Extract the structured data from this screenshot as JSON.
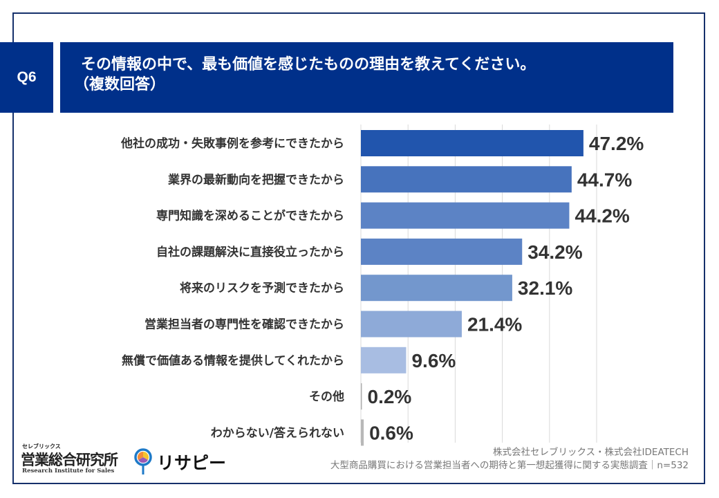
{
  "header": {
    "question_no": "Q6",
    "title_line1": "その情報の中で、最も価値を感じたものの理由を教えてください。",
    "title_line2": "（複数回答）"
  },
  "chart_data": {
    "type": "bar",
    "orientation": "horizontal",
    "title": "その情報の中で、最も価値を感じたものの理由を教えてください。（複数回答）",
    "xlabel": "",
    "ylabel": "",
    "xlim": [
      0,
      50
    ],
    "grid": true,
    "grid_step": 10,
    "value_suffix": "%",
    "categories": [
      "他社の成功・失敗事例を参考にできたから",
      "業界の最新動向を把握できたから",
      "専門知識を深めることができたから",
      "自社の課題解決に直接役立ったから",
      "将来のリスクを予測できたから",
      "営業担当者の専門性を確認できたから",
      "無償で価値ある情報を提供してくれたから",
      "その他",
      "わからない/答えられない"
    ],
    "values": [
      47.2,
      44.7,
      44.2,
      34.2,
      32.1,
      21.4,
      9.6,
      0.2,
      0.6
    ],
    "labels": [
      "47.2%",
      "44.7%",
      "44.2%",
      "34.2%",
      "32.1%",
      "21.4%",
      "9.6%",
      "0.2%",
      "0.6%"
    ],
    "colors": [
      "#2155ad",
      "#4773bd",
      "#5c83c5",
      "#5c83c5",
      "#7397cd",
      "#8eaad8",
      "#a8bde2",
      "#b0b0b0",
      "#b8b8b8"
    ]
  },
  "footer": {
    "source_line1": "株式会社セレブリックス・株式会社IDEATECH",
    "source_line2": "大型商品購買における営業担当者への期待と第一想起獲得に関する実態調査｜n=532",
    "logo_small": "セレブリックス",
    "logo_main": "営業総合研究所",
    "logo_en": "Research Institute for Sales",
    "brand2": "リサピー"
  }
}
